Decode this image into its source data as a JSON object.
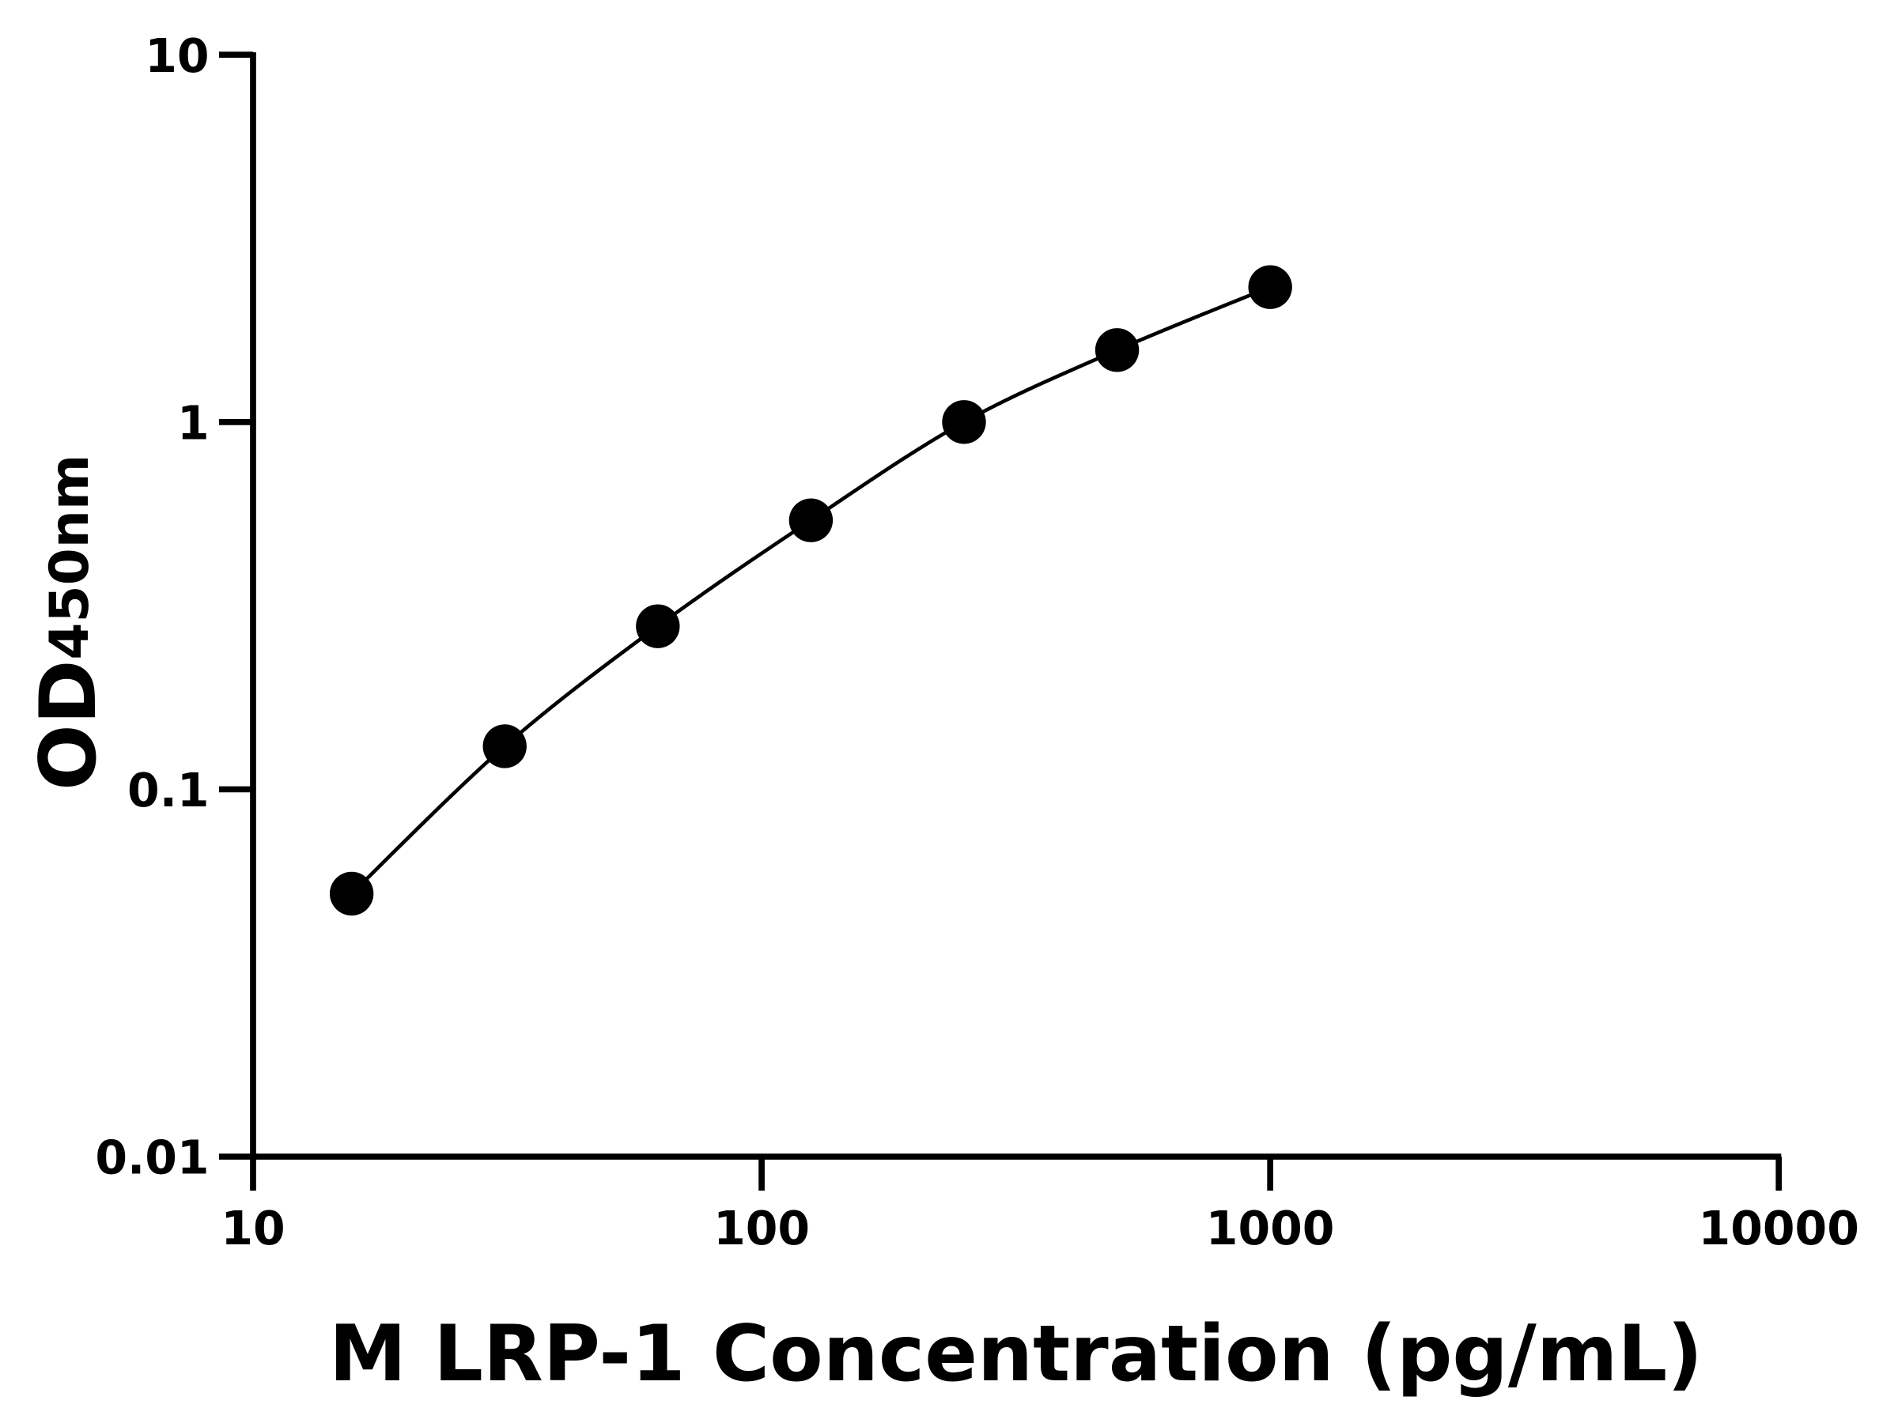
{
  "chart_data": {
    "type": "scatter",
    "title": "",
    "xlabel": "M LRP-1 Concentration (pg/mL)",
    "ylabel_main": "OD",
    "ylabel_sub": "450nm",
    "x_scale": "log",
    "y_scale": "log",
    "xlim": [
      10,
      10000
    ],
    "ylim": [
      0.01,
      10
    ],
    "x_ticks": [
      "10",
      "100",
      "1000",
      "10000"
    ],
    "y_ticks": [
      "0.01",
      "0.1",
      "1",
      "10"
    ],
    "grid": false,
    "fit_curve": true,
    "series": [
      {
        "x": [
          15.625,
          31.25,
          62.5,
          125,
          250,
          500,
          1000
        ],
        "y": [
          0.052,
          0.131,
          0.278,
          0.54,
          1.0,
          1.57,
          2.33
        ]
      }
    ],
    "colors": {
      "points": "#000000",
      "line": "#000000"
    }
  }
}
